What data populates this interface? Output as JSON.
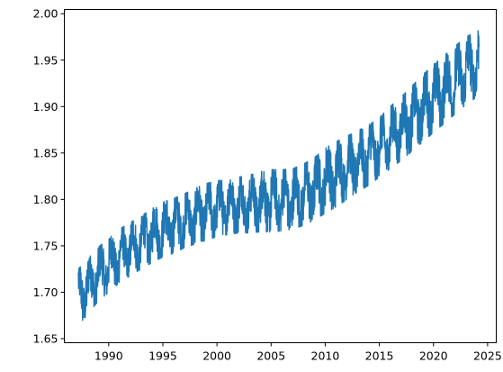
{
  "chart_data": {
    "type": "line",
    "title": "",
    "xlabel": "",
    "ylabel": "",
    "xlim": [
      1985.9,
      2025.8
    ],
    "ylim": [
      1.6456,
      2.0046
    ],
    "x_ticks": [
      1990,
      1995,
      2000,
      2005,
      2010,
      2015,
      2020,
      2025
    ],
    "x_tick_labels": [
      "1990",
      "1995",
      "2000",
      "2005",
      "2010",
      "2015",
      "2020",
      "2025"
    ],
    "y_ticks": [
      1.65,
      1.7,
      1.75,
      1.8,
      1.85,
      1.9,
      1.95,
      2.0
    ],
    "y_tick_labels": [
      "1.65",
      "1.70",
      "1.75",
      "1.80",
      "1.85",
      "1.90",
      "1.95",
      "2.00"
    ],
    "grid": false,
    "legend": "none",
    "series_color": "#1f77b4",
    "envelope": {
      "x": [
        1987.2,
        1988,
        1989,
        1990,
        1991,
        1992,
        1993,
        1994,
        1995,
        1996,
        1997,
        1998,
        1999,
        2000,
        2001,
        2002,
        2003,
        2004,
        2005,
        2006,
        2007,
        2008,
        2009,
        2010,
        2011,
        2012,
        2013,
        2014,
        2015,
        2016,
        2017,
        2018,
        2019,
        2020,
        2021,
        2022,
        2023,
        2024.2
      ],
      "low": [
        1.665,
        1.675,
        1.69,
        1.7,
        1.71,
        1.718,
        1.725,
        1.732,
        1.738,
        1.742,
        1.748,
        1.752,
        1.756,
        1.76,
        1.762,
        1.764,
        1.764,
        1.765,
        1.765,
        1.766,
        1.768,
        1.772,
        1.778,
        1.785,
        1.792,
        1.8,
        1.808,
        1.815,
        1.824,
        1.833,
        1.842,
        1.852,
        1.862,
        1.872,
        1.882,
        1.892,
        1.902,
        1.912
      ],
      "high": [
        1.725,
        1.735,
        1.748,
        1.758,
        1.768,
        1.775,
        1.782,
        1.79,
        1.797,
        1.801,
        1.806,
        1.812,
        1.817,
        1.82,
        1.822,
        1.824,
        1.826,
        1.83,
        1.832,
        1.832,
        1.833,
        1.838,
        1.845,
        1.855,
        1.862,
        1.868,
        1.874,
        1.88,
        1.888,
        1.9,
        1.91,
        1.922,
        1.934,
        1.945,
        1.955,
        1.965,
        1.975,
        1.982
      ]
    }
  }
}
